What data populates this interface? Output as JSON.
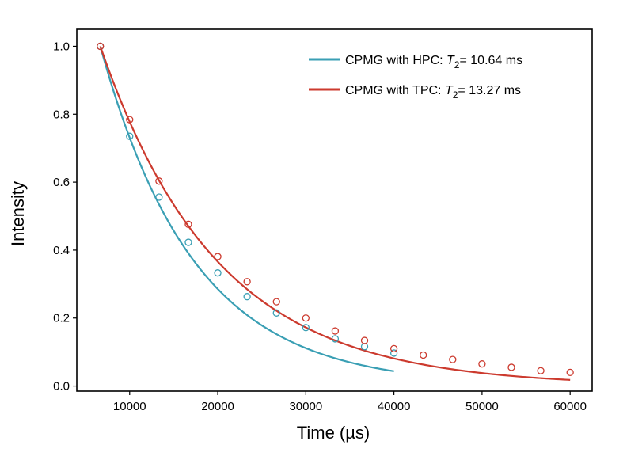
{
  "chart_data": {
    "type": "scatter",
    "xlabel": "Time (µs)",
    "ylabel": "Intensity",
    "xlim": [
      4000,
      62500
    ],
    "ylim": [
      -0.015,
      1.05
    ],
    "xticks": [
      10000,
      20000,
      30000,
      40000,
      50000,
      60000
    ],
    "yticks": [
      0.0,
      0.2,
      0.4,
      0.6,
      0.8,
      1.0
    ],
    "xtick_labels": [
      "10000",
      "20000",
      "30000",
      "40000",
      "50000",
      "60000"
    ],
    "ytick_labels": [
      "0.0",
      "0.2",
      "0.4",
      "0.6",
      "0.8",
      "1.0"
    ],
    "grid": false,
    "legend_position": "top-right",
    "series": [
      {
        "name": "CPMG with HPC: T2 = 10.64 ms",
        "legend_prefix": "CPMG with HPC: ",
        "legend_symbol": "T",
        "legend_subscript": "2",
        "legend_suffix": "= 10.64 ms",
        "color": "#3a9fb4",
        "fit_T2_us": 10640,
        "x": [
          6667,
          10000,
          13333,
          16667,
          20000,
          23333,
          26667,
          30000,
          33333,
          36667,
          40000
        ],
        "y": [
          1.0,
          0.735,
          0.556,
          0.423,
          0.333,
          0.263,
          0.215,
          0.172,
          0.139,
          0.116,
          0.097
        ]
      },
      {
        "name": "CPMG with TPC: T2 = 13.27 ms",
        "legend_prefix": "CPMG with TPC: ",
        "legend_symbol": "T",
        "legend_subscript": "2",
        "legend_suffix": "= 13.27 ms",
        "color": "#cc3a2e",
        "fit_T2_us": 13270,
        "x": [
          6667,
          10000,
          13333,
          16667,
          20000,
          23333,
          26667,
          30000,
          33333,
          36667,
          40000,
          43333,
          46667,
          50000,
          53333,
          56667,
          60000
        ],
        "y": [
          1.0,
          0.784,
          0.603,
          0.476,
          0.381,
          0.307,
          0.248,
          0.2,
          0.162,
          0.134,
          0.11,
          0.091,
          0.078,
          0.065,
          0.055,
          0.045,
          0.04
        ]
      }
    ]
  }
}
